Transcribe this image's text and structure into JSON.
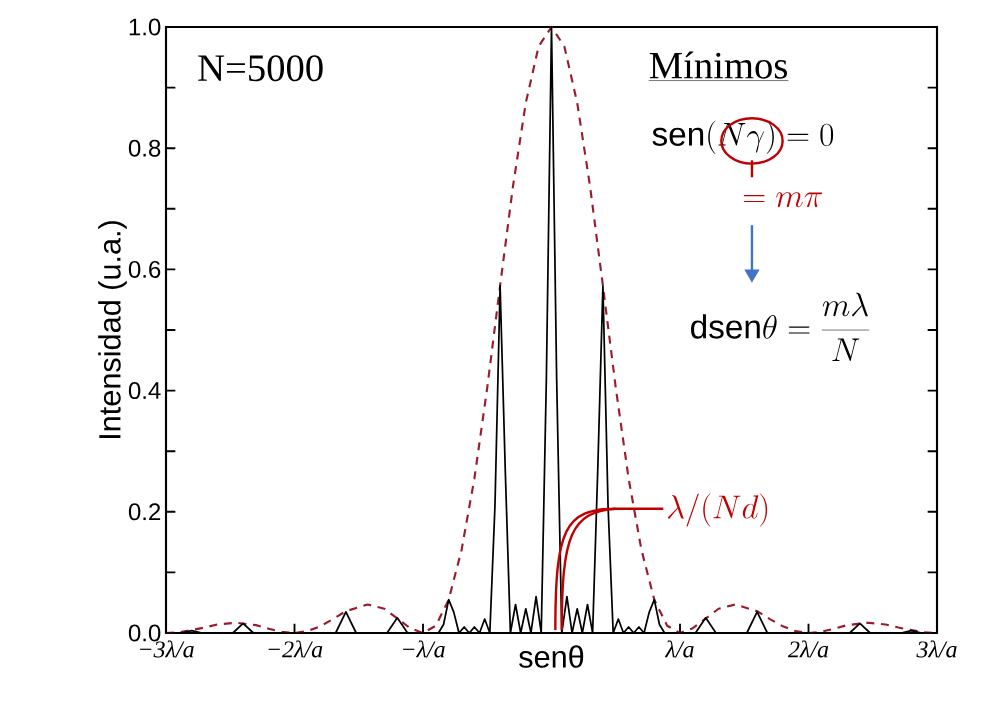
{
  "chart_data": {
    "type": "line",
    "xlabel": "senθ",
    "ylabel": "Intensidad (u.a.)",
    "xlim": [
      -3,
      3
    ],
    "ylim": [
      0,
      1
    ],
    "xticks": [
      {
        "value": -3,
        "label": "−3λ/a"
      },
      {
        "value": -2,
        "label": "−2λ/a"
      },
      {
        "value": -1,
        "label": "−λ/a"
      },
      {
        "value": 1,
        "label": "λ/a"
      },
      {
        "value": 2,
        "label": "2λ/a"
      },
      {
        "value": 3,
        "label": "3λ/a"
      }
    ],
    "yticks": [
      {
        "value": 0,
        "label": "0.0"
      },
      {
        "value": 0.1,
        "label": null
      },
      {
        "value": 0.2,
        "label": "0.2"
      },
      {
        "value": 0.3,
        "label": null
      },
      {
        "value": 0.4,
        "label": "0.4"
      },
      {
        "value": 0.5,
        "label": null
      },
      {
        "value": 0.6,
        "label": "0.6"
      },
      {
        "value": 0.7,
        "label": null
      },
      {
        "value": 0.8,
        "label": "0.8"
      },
      {
        "value": 0.9,
        "label": null
      },
      {
        "value": 1,
        "label": "1.0"
      }
    ],
    "grid": false,
    "marker": "none",
    "series": [
      {
        "color": "#000000",
        "line_style": "solid",
        "x": [
          -3,
          -2.88,
          -2.8,
          -2.72,
          -2.48,
          -2.4,
          -2.32,
          -1.68,
          -1.6,
          -1.52,
          -1.28,
          -1.2,
          -1.12,
          -0.88,
          -0.84,
          -0.8,
          -0.76,
          -0.72,
          -0.68,
          -0.64,
          -0.6,
          -0.56,
          -0.52,
          -0.48,
          -0.44,
          -0.4,
          -0.36,
          -0.32,
          -0.28,
          -0.24,
          -0.2,
          -0.16,
          -0.12,
          -0.08,
          -0.04,
          0,
          0.04,
          0.08,
          0.12,
          0.16,
          0.2,
          0.24,
          0.28,
          0.32,
          0.36,
          0.4,
          0.44,
          0.48,
          0.52,
          0.56,
          0.6,
          0.64,
          0.68,
          0.72,
          0.76,
          0.8,
          0.84,
          0.88,
          1.12,
          1.2,
          1.28,
          1.52,
          1.6,
          1.68,
          2.32,
          2.4,
          2.48,
          2.72,
          2.8,
          2.88,
          3
        ],
        "values": [
          0,
          0,
          0.004,
          0,
          0,
          0.016,
          0,
          0,
          0.035,
          0,
          0,
          0.025,
          0,
          0,
          0.014,
          0.055,
          0.034,
          0,
          0.01,
          0,
          0.01,
          0,
          0.023,
          0,
          0.21,
          0.573,
          0.27,
          0,
          0.047,
          0,
          0.04,
          0,
          0.06,
          0,
          0.42,
          1,
          0.42,
          0,
          0.06,
          0,
          0.04,
          0,
          0.047,
          0,
          0.27,
          0.573,
          0.21,
          0,
          0.023,
          0,
          0.01,
          0,
          0.01,
          0,
          0.034,
          0.055,
          0.014,
          0,
          0,
          0.025,
          0,
          0,
          0.035,
          0,
          0,
          0.016,
          0,
          0,
          0.004,
          0,
          0
        ]
      },
      {
        "color": "#9b1b2e",
        "line_style": "dashed",
        "x": [
          -3,
          -2.9,
          -2.8,
          -2.7,
          -2.6,
          -2.46,
          -2.3,
          -2.2,
          -2.1,
          -2,
          -1.9,
          -1.8,
          -1.7,
          -1.6,
          -1.43,
          -1.3,
          -1.2,
          -1.1,
          -1,
          -0.9,
          -0.8,
          -0.7,
          -0.6,
          -0.5,
          -0.4,
          -0.3,
          -0.2,
          -0.1,
          0,
          0.1,
          0.2,
          0.3,
          0.4,
          0.5,
          0.6,
          0.7,
          0.8,
          0.9,
          1,
          1.1,
          1.2,
          1.3,
          1.43,
          1.6,
          1.7,
          1.8,
          1.9,
          2,
          2.1,
          2.2,
          2.3,
          2.46,
          2.6,
          2.7,
          2.8,
          2.9,
          3
        ],
        "values": [
          0,
          0.001,
          0.005,
          0.009,
          0.014,
          0.017,
          0.013,
          0.007,
          0.002,
          0,
          0.003,
          0.011,
          0.023,
          0.036,
          0.047,
          0.04,
          0.024,
          0.008,
          0,
          0.012,
          0.055,
          0.137,
          0.255,
          0.405,
          0.573,
          0.737,
          0.875,
          0.968,
          1,
          0.968,
          0.875,
          0.737,
          0.573,
          0.405,
          0.255,
          0.137,
          0.055,
          0.012,
          0,
          0.008,
          0.024,
          0.04,
          0.047,
          0.036,
          0.023,
          0.011,
          0.003,
          0,
          0.002,
          0.007,
          0.013,
          0.017,
          0.014,
          0.009,
          0.005,
          0.001,
          0
        ]
      }
    ],
    "annotations": [
      "N=5000",
      "Mínimos",
      "\\mathrm{sen}(N\\gamma) = 0",
      "= m\\pi",
      "\\mathrm{dsen}\\theta = \\frac{m\\lambda}{N}",
      "\\lambda/(Nd)"
    ]
  }
}
